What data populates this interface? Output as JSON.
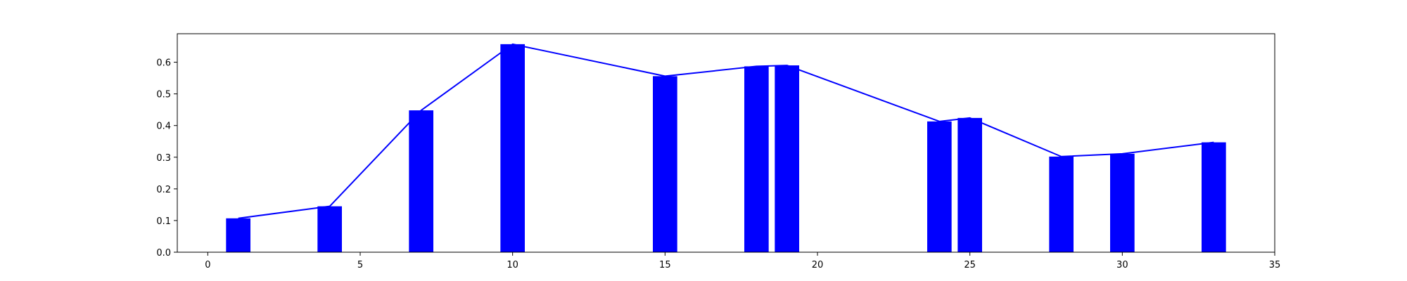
{
  "chart_data": {
    "type": "bar",
    "title": "",
    "xlabel": "",
    "ylabel": "",
    "xlim": [
      -1.0,
      35.0
    ],
    "ylim": [
      0.0,
      0.69
    ],
    "grid": false,
    "x_ticks": [
      0,
      5,
      10,
      15,
      20,
      25,
      30,
      35
    ],
    "y_ticks": [
      0.0,
      0.1,
      0.2,
      0.3,
      0.4,
      0.5,
      0.6
    ],
    "x_tick_labels": [
      "0",
      "5",
      "10",
      "15",
      "20",
      "25",
      "30",
      "35"
    ],
    "y_tick_labels": [
      "0.0",
      "0.1",
      "0.2",
      "0.3",
      "0.4",
      "0.5",
      "0.6"
    ],
    "bar_width": 0.8,
    "bar_color": "#0000ff",
    "line_color": "#0000ff",
    "x": [
      1,
      4,
      7,
      10,
      15,
      18,
      19,
      24,
      25,
      28,
      30,
      33
    ],
    "values": [
      0.107,
      0.145,
      0.448,
      0.657,
      0.556,
      0.587,
      0.59,
      0.413,
      0.424,
      0.302,
      0.311,
      0.347
    ]
  }
}
